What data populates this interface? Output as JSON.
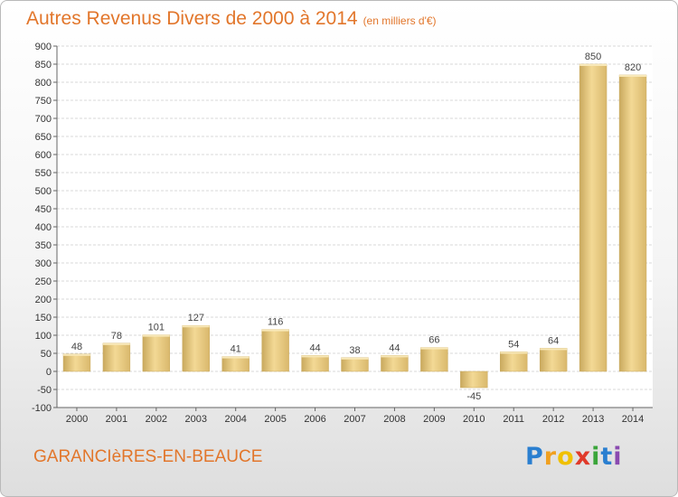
{
  "title": "Autres Revenus Divers de 2000 à 2014",
  "subtitle": "(en milliers d'€)",
  "place": "GARANCIèRES-EN-BEAUCE",
  "logo": {
    "letters": [
      "P",
      "r",
      "o",
      "x",
      "i",
      "t",
      "i"
    ],
    "colors": [
      "#2a7fd0",
      "#f0a020",
      "#f0c000",
      "#e03a2a",
      "#3aa53a",
      "#2a7fd0",
      "#8a4ab0"
    ]
  },
  "chart_data": {
    "type": "bar",
    "categories": [
      "2000",
      "2001",
      "2002",
      "2003",
      "2004",
      "2005",
      "2006",
      "2007",
      "2008",
      "2009",
      "2010",
      "2011",
      "2012",
      "2013",
      "2014"
    ],
    "values": [
      48,
      78,
      101,
      127,
      41,
      116,
      44,
      38,
      44,
      66,
      -45,
      54,
      64,
      850,
      820
    ],
    "ylim": [
      -100,
      900
    ],
    "yticks": [
      -100,
      -50,
      0,
      50,
      100,
      150,
      200,
      250,
      300,
      350,
      400,
      450,
      500,
      550,
      600,
      650,
      700,
      750,
      800,
      850,
      900
    ],
    "grid": true,
    "bar_color": "#e8c87c"
  }
}
